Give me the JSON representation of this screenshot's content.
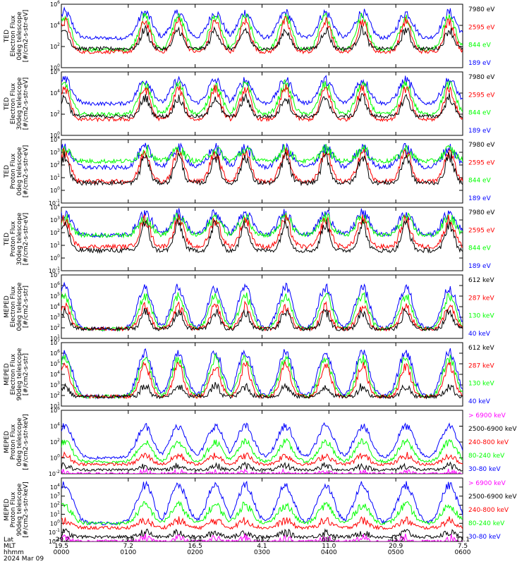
{
  "colors": {
    "blue": "#0000ff",
    "red": "#ff0000",
    "green": "#00ff00",
    "black": "#000000",
    "magenta": "#ff00ff"
  },
  "x_axis": {
    "row_labels": [
      "Lat",
      "MLT",
      "hhmm",
      "2024 Mar 09"
    ],
    "ticks": [
      {
        "lat": "-29.2",
        "mlt": "19.5",
        "hhmm": "0000"
      },
      {
        "lat": "-3.9",
        "mlt": "7.2",
        "hhmm": "0100"
      },
      {
        "lat": "35.4",
        "mlt": "16.5",
        "hhmm": "0200"
      },
      {
        "lat": "-63.2",
        "mlt": "4.1",
        "hhmm": "0300"
      },
      {
        "lat": "68.9",
        "mlt": "11.0",
        "hhmm": "0400"
      },
      {
        "lat": "-45.2",
        "mlt": "20.9",
        "hhmm": "0500"
      },
      {
        "lat": "17.1",
        "mlt": "7.5",
        "hhmm": "0600"
      }
    ]
  },
  "chart_data": [
    {
      "type": "line",
      "ylabel": [
        "TED",
        "Electron Flux",
        "0deg telescope",
        "[#/cm2-s-str-eV]"
      ],
      "yscale": "log",
      "ylim_exp": [
        0,
        6
      ],
      "ytick_exps": [
        0,
        2,
        4,
        6
      ],
      "series": [
        {
          "name": "7980 eV",
          "color": "#000000",
          "base": 1.8,
          "peak": 3.6
        },
        {
          "name": "2595 eV",
          "color": "#ff0000",
          "base": 1.5,
          "peak": 4.4
        },
        {
          "name": "844 eV",
          "color": "#00ff00",
          "base": 1.7,
          "peak": 4.8
        },
        {
          "name": "189 eV",
          "color": "#0000ff",
          "base": 2.8,
          "peak": 5.2
        }
      ]
    },
    {
      "type": "line",
      "ylabel": [
        "TED",
        "Electron Flux",
        "30deg telescope",
        "[#/cm2-s-str-eV]"
      ],
      "yscale": "log",
      "ylim_exp": [
        0,
        6
      ],
      "ytick_exps": [
        0,
        2,
        4,
        6
      ],
      "series": [
        {
          "name": "7980 eV",
          "color": "#000000",
          "base": 1.8,
          "peak": 3.6
        },
        {
          "name": "2595 eV",
          "color": "#ff0000",
          "base": 1.5,
          "peak": 4.4
        },
        {
          "name": "844 eV",
          "color": "#00ff00",
          "base": 2.0,
          "peak": 4.8
        },
        {
          "name": "189 eV",
          "color": "#0000ff",
          "base": 3.0,
          "peak": 5.2
        }
      ]
    },
    {
      "type": "line",
      "ylabel": [
        "TED",
        "Proton Flux",
        "0deg telescope",
        "[#/cm2-s-str-eV]"
      ],
      "yscale": "log",
      "ylim_exp": [
        -1,
        4
      ],
      "ytick_exps": [
        -1,
        0,
        1,
        2,
        3,
        4
      ],
      "series": [
        {
          "name": "7980 eV",
          "color": "#000000",
          "base": 0.6,
          "peak": 2.7
        },
        {
          "name": "2595 eV",
          "color": "#ff0000",
          "base": 0.7,
          "peak": 3.0
        },
        {
          "name": "844 eV",
          "color": "#00ff00",
          "base": 2.3,
          "peak": 3.2
        },
        {
          "name": "189 eV",
          "color": "#0000ff",
          "base": 1.8,
          "peak": 3.3
        }
      ]
    },
    {
      "type": "line",
      "ylabel": [
        "TED",
        "Proton Flux",
        "30deg telescope",
        "[#/cm2-s-str-eV]"
      ],
      "yscale": "log",
      "ylim_exp": [
        -1,
        4
      ],
      "ytick_exps": [
        -1,
        0,
        1,
        2,
        3,
        4
      ],
      "series": [
        {
          "name": "7980 eV",
          "color": "#000000",
          "base": 0.6,
          "peak": 2.7
        },
        {
          "name": "2595 eV",
          "color": "#ff0000",
          "base": 0.9,
          "peak": 3.0
        },
        {
          "name": "844 eV",
          "color": "#00ff00",
          "base": 1.8,
          "peak": 3.2
        },
        {
          "name": "189 eV",
          "color": "#0000ff",
          "base": 1.8,
          "peak": 3.5
        }
      ]
    },
    {
      "type": "line",
      "ylabel": [
        "MEPED",
        "Electron Flux",
        "0deg telescope",
        "[#/cm2-s-str]"
      ],
      "yscale": "log",
      "ylim_exp": [
        1,
        7
      ],
      "ytick_exps": [
        1,
        2,
        3,
        4,
        5,
        6,
        7
      ],
      "series": [
        {
          "name": "612 keV",
          "color": "#000000",
          "base": 1.9,
          "peak": 3.5
        },
        {
          "name": "287 keV",
          "color": "#ff0000",
          "base": 1.9,
          "peak": 4.0
        },
        {
          "name": "130 keV",
          "color": "#00ff00",
          "base": 1.9,
          "peak": 5.0
        },
        {
          "name": "40 keV",
          "color": "#0000ff",
          "base": 1.9,
          "peak": 5.8
        }
      ]
    },
    {
      "type": "line",
      "ylabel": [
        "MEPED",
        "Electron Flux",
        "90deg telescope",
        "[#/cm2-s-str]"
      ],
      "yscale": "log",
      "ylim_exp": [
        1,
        7
      ],
      "ytick_exps": [
        1,
        2,
        3,
        4,
        5,
        6,
        7
      ],
      "series": [
        {
          "name": "612 keV",
          "color": "#000000",
          "base": 1.9,
          "peak": 2.9
        },
        {
          "name": "287 keV",
          "color": "#ff0000",
          "base": 1.9,
          "peak": 4.8
        },
        {
          "name": "130 keV",
          "color": "#00ff00",
          "base": 1.9,
          "peak": 5.5
        },
        {
          "name": "40 keV",
          "color": "#0000ff",
          "base": 1.9,
          "peak": 6.1
        }
      ]
    },
    {
      "type": "line",
      "ylabel": [
        "MEPED",
        "Proton Flux",
        "0deg telescope",
        "[#/cm2-s-str-keV]"
      ],
      "yscale": "log",
      "ylim_exp": [
        -2,
        6
      ],
      "ytick_exps": [
        -2,
        0,
        2,
        4,
        6
      ],
      "series": [
        {
          "name": "> 6900 keV",
          "color": "#ff00ff",
          "base": -2.0,
          "peak": -1.8
        },
        {
          "name": "2500-6900 keV",
          "color": "#000000",
          "base": -1.5,
          "peak": -1.0
        },
        {
          "name": "240-800 keV",
          "color": "#ff0000",
          "base": -0.8,
          "peak": 0.3
        },
        {
          "name": "80-240 keV",
          "color": "#00ff00",
          "base": -0.5,
          "peak": 2.0
        },
        {
          "name": "30-80 keV",
          "color": "#0000ff",
          "base": 0.0,
          "peak": 4.0
        }
      ]
    },
    {
      "type": "line",
      "ylabel": [
        "MEPED",
        "Proton Flux",
        "90deg telescope",
        "[#/cm2-s-str-keV]"
      ],
      "yscale": "log",
      "ylim_exp": [
        -2,
        5
      ],
      "ytick_exps": [
        -2,
        -1,
        0,
        1,
        2,
        3,
        4
      ],
      "series": [
        {
          "name": "> 6900 keV",
          "color": "#ff00ff",
          "base": -2.0,
          "peak": -1.6
        },
        {
          "name": "2500-6900 keV",
          "color": "#000000",
          "base": -1.5,
          "peak": -1.0
        },
        {
          "name": "240-800 keV",
          "color": "#ff0000",
          "base": -0.5,
          "peak": 0.3
        },
        {
          "name": "80-240 keV",
          "color": "#00ff00",
          "base": 0.0,
          "peak": 2.0
        },
        {
          "name": "30-80 keV",
          "color": "#0000ff",
          "base": 0.0,
          "peak": 4.2
        }
      ]
    }
  ],
  "pass_centers_hours": [
    0.05,
    1.25,
    1.75,
    2.3,
    2.75,
    3.35,
    3.95,
    4.5,
    5.15,
    5.8
  ]
}
